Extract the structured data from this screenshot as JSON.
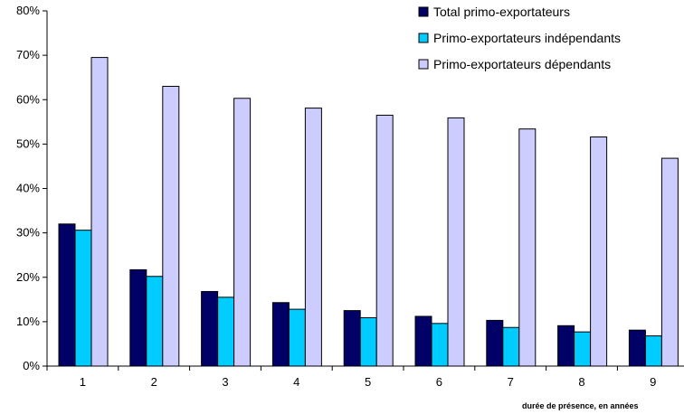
{
  "chart_data": {
    "type": "bar",
    "title": "",
    "xlabel": "durée de présence, en années",
    "ylabel": "",
    "categories": [
      "1",
      "2",
      "3",
      "4",
      "5",
      "6",
      "7",
      "8",
      "9"
    ],
    "series": [
      {
        "name": "Total primo-exportateurs",
        "color": "#000066",
        "values": [
          32.0,
          21.7,
          16.8,
          14.3,
          12.5,
          11.2,
          10.3,
          9.1,
          8.1
        ]
      },
      {
        "name": "Primo-exportateurs indépendants",
        "color": "#00CCFF",
        "values": [
          30.6,
          20.2,
          15.5,
          12.8,
          10.9,
          9.6,
          8.7,
          7.7,
          6.8
        ]
      },
      {
        "name": "Primo-exportateurs dépendants",
        "color": "#CCCCFF",
        "values": [
          69.5,
          63.0,
          60.3,
          58.1,
          56.5,
          55.9,
          53.4,
          51.6,
          46.8
        ]
      }
    ],
    "yticks": [
      "0%",
      "10%",
      "20%",
      "30%",
      "40%",
      "50%",
      "60%",
      "70%",
      "80%"
    ],
    "ylim": [
      0,
      80
    ],
    "grid": false,
    "legend_position": "top-right"
  }
}
